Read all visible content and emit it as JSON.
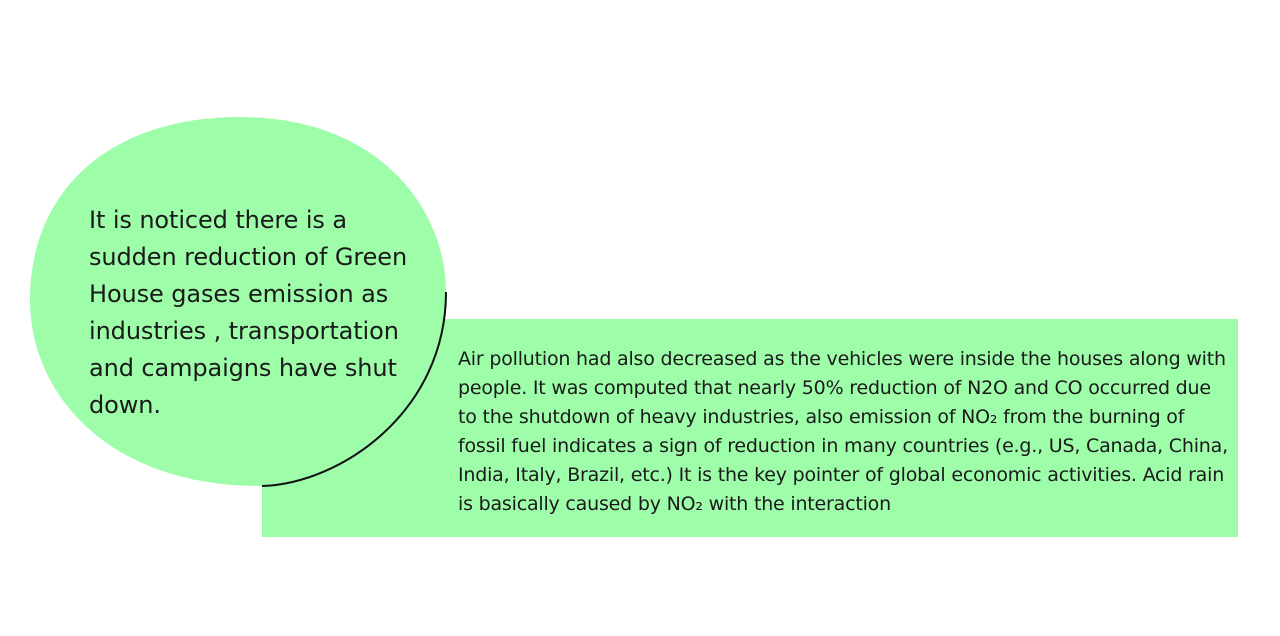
{
  "slide": {
    "bubble_text": "It is noticed there is a sudden reduction of Green House gases emission as industries , transportation and campaigns have shut down.",
    "box_text": "Air pollution had also decreased as the vehicles were inside the houses along with people. It was computed that nearly 50% reduction of N2O and CO occurred due to the shutdown of heavy industries, also emission of NO₂ from the burning of fossil fuel indicates a sign of reduction in many countries (e.g., US, Canada, China, India, Italy, Brazil, etc.) It is the key pointer of global economic activities. Acid rain is basically caused by NO₂ with the interaction"
  },
  "colors": {
    "fill": "#9dfda9",
    "outline": "#111111",
    "background": "#ffffff"
  }
}
